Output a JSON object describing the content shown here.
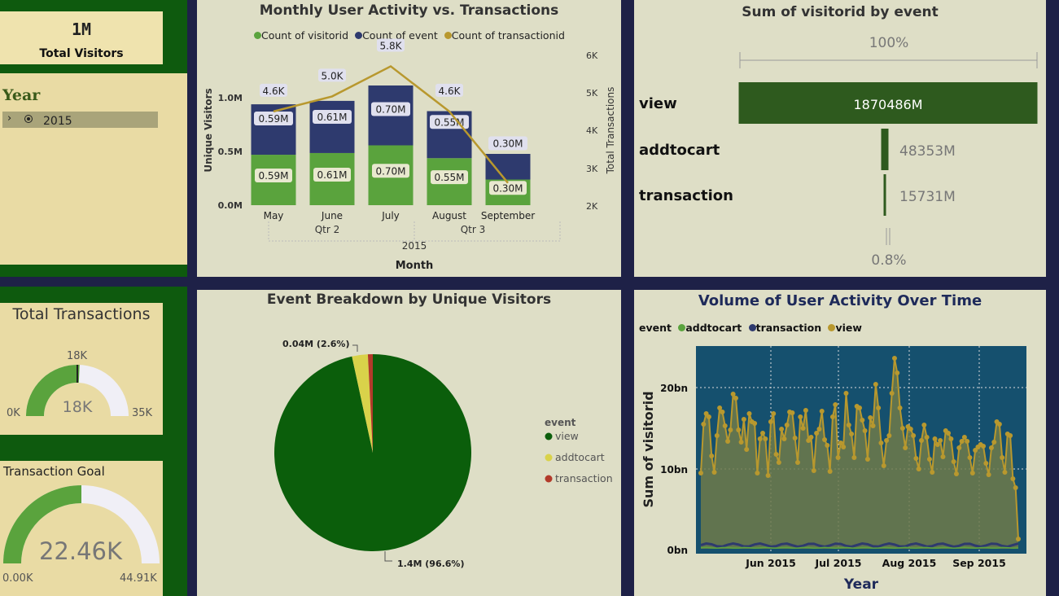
{
  "colors": {
    "background": "#1e2147",
    "side_green": "#0e5a0e",
    "card": "#e6d9a8",
    "panel": "#dedec6",
    "visitor_green": "#5aa33d",
    "event_navy": "#2e3a6e",
    "transaction_gold": "#b8982e",
    "view_dark_green": "#2e5a1e",
    "pie_view": "#0b5e0b",
    "pie_addtocart": "#d9d24a",
    "pie_transaction": "#b23a2a"
  },
  "kpi": {
    "total_visitors_value": "1M",
    "total_visitors_label": "Total Visitors"
  },
  "year_slicer": {
    "title": "Year",
    "item": "2015"
  },
  "total_transactions": {
    "title": "Total Transactions",
    "target_label": "18K",
    "value_label": "18K",
    "min_label": "0K",
    "max_label": "35K",
    "fill_fraction": 0.514
  },
  "transaction_goal": {
    "title": "Transaction Goal",
    "value_label": "22.46K",
    "min_label": "0.00K",
    "max_label": "44.91K",
    "fill_fraction": 0.5
  },
  "monthly_chart": {
    "title": "Monthly User Activity vs. Transactions",
    "legend": [
      "Count of visitorid",
      "Count of event",
      "Count of transactionid"
    ],
    "y_left_label": "Unique Visitors",
    "y_right_label": "Total Transactions",
    "x_label": "Month",
    "left_ticks": [
      "1.0M",
      "0.5M",
      "0.0M"
    ],
    "right_ticks": [
      "6K",
      "5K",
      "4K",
      "3K",
      "2K"
    ],
    "quarters": [
      "Qtr 2",
      "Qtr 3"
    ],
    "year": "2015"
  },
  "funnel": {
    "title": "Sum of visitorid by event",
    "top_pct": "100%",
    "bottom_pct": "0.8%"
  },
  "pie": {
    "title": "Event Breakdown by Unique Visitors",
    "label_small": "0.04M (2.6%)",
    "label_big": "1.4M (96.6%)",
    "legend_title": "event"
  },
  "timeseries": {
    "title": "Volume of User Activity Over Time",
    "legend_title": "event",
    "legend": [
      "addtocart",
      "transaction",
      "view"
    ],
    "y_label": "Sum of visitorid",
    "x_label": "Year",
    "y_ticks": [
      "20bn",
      "10bn",
      "0bn"
    ],
    "x_ticks": [
      "Jun 2015",
      "Jul 2015",
      "Aug 2015",
      "Sep 2015"
    ]
  },
  "chart_data": [
    {
      "type": "bar",
      "title": "Monthly User Activity vs. Transactions",
      "categories": [
        "May",
        "June",
        "July",
        "August",
        "September"
      ],
      "series": [
        {
          "name": "Count of visitorid",
          "values": [
            0.59,
            0.61,
            0.7,
            0.55,
            0.3
          ],
          "labels": [
            "0.59M",
            "0.61M",
            "0.70M",
            "0.55M",
            "0.30M"
          ]
        },
        {
          "name": "Count of event",
          "values": [
            0.59,
            0.61,
            0.7,
            0.55,
            0.3
          ],
          "labels": [
            "0.59M",
            "0.61M",
            "0.70M",
            "0.55M",
            "0.30M"
          ]
        },
        {
          "name": "Count of transactionid",
          "values": [
            4.6,
            5.0,
            5.8,
            4.6,
            2.7
          ],
          "labels": [
            "4.6K",
            "5.0K",
            "5.8K",
            "4.6K",
            ""
          ]
        }
      ],
      "ylim": [
        0,
        1.2
      ],
      "y2lim": [
        2,
        6
      ],
      "xlabel": "Month",
      "ylabel": "Unique Visitors"
    },
    {
      "type": "bar",
      "title": "Sum of visitorid by event",
      "categories": [
        "view",
        "addtocart",
        "transaction"
      ],
      "values": [
        1870486,
        48353,
        15731
      ],
      "value_labels": [
        "1870486M",
        "48353M",
        "15731M"
      ]
    },
    {
      "type": "pie",
      "title": "Event Breakdown by Unique Visitors",
      "categories": [
        "view",
        "addtocart",
        "transaction"
      ],
      "values": [
        96.6,
        2.6,
        0.8
      ]
    },
    {
      "type": "line",
      "title": "Volume of User Activity Over Time",
      "xlabel": "Year",
      "ylabel": "Sum of visitorid",
      "ylim": [
        0,
        24
      ],
      "x_range": [
        "2015-05-03",
        "2015-09-18"
      ],
      "series": [
        {
          "name": "view",
          "values": [
            9.3,
            15.3,
            16.6,
            16.2,
            11.4,
            9.4,
            13.9,
            17.3,
            16.8,
            15.1,
            13.2,
            14.6,
            19.0,
            18.5,
            14.6,
            13.1,
            15.9,
            12.2,
            16.6,
            15.6,
            15.4,
            9.3,
            13.5,
            14.2,
            13.5,
            9.0,
            15.6,
            16.6,
            11.6,
            10.6,
            14.7,
            13.5,
            15.2,
            16.8,
            16.7,
            13.6,
            10.6,
            16.2,
            14.8,
            17.0,
            13.3,
            13.7,
            9.6,
            14.2,
            14.7,
            16.9,
            13.4,
            12.7,
            9.5,
            16.2,
            17.7,
            11.2,
            13.0,
            12.5,
            19.1,
            15.2,
            14.1,
            11.2,
            17.5,
            17.3,
            15.8,
            14.5,
            11.0,
            16.1,
            15.1,
            20.2,
            17.3,
            13.0,
            10.2,
            13.3,
            13.9,
            19.1,
            23.4,
            21.6,
            17.3,
            14.8,
            12.4,
            15.0,
            14.7,
            13.9,
            11.1,
            9.8,
            13.3,
            15.2,
            13.7,
            11.0,
            9.4,
            13.5,
            12.8,
            13.3,
            11.3,
            14.5,
            14.2,
            13.5,
            10.7,
            9.2,
            12.4,
            13.2,
            13.7,
            13.2,
            11.2,
            9.3,
            12.1,
            12.5,
            12.8,
            12.6,
            10.5,
            9.1,
            12.4,
            13.1,
            15.6,
            15.3,
            11.2,
            9.4,
            14.1,
            13.9,
            8.6,
            7.5,
            1.2
          ]
        },
        {
          "name": "transaction",
          "values": [
            0.4,
            0.5,
            0.6,
            0.5,
            0.5,
            0.5
          ]
        },
        {
          "name": "addtocart",
          "values": [
            0.1,
            0.15,
            0.1,
            0.15,
            0.1,
            0.1
          ]
        }
      ]
    }
  ]
}
